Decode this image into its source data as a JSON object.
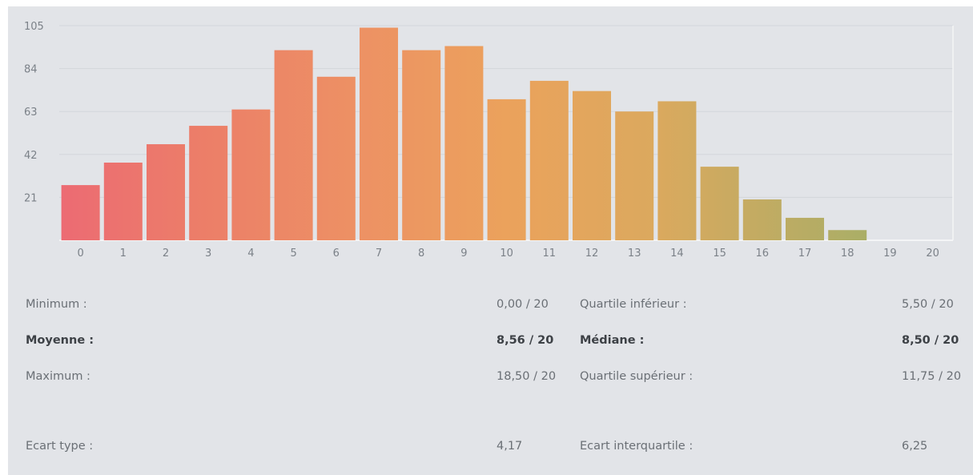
{
  "chart_data": {
    "type": "bar",
    "categories": [
      "0",
      "1",
      "2",
      "3",
      "4",
      "5",
      "6",
      "7",
      "8",
      "9",
      "10",
      "11",
      "12",
      "13",
      "14",
      "15",
      "16",
      "17",
      "18",
      "19",
      "20"
    ],
    "values": [
      27,
      38,
      47,
      56,
      64,
      93,
      80,
      104,
      93,
      95,
      69,
      78,
      73,
      63,
      68,
      36,
      20,
      11,
      5,
      0,
      0
    ],
    "y_ticks": [
      "21",
      "42",
      "63",
      "84",
      "105"
    ],
    "ylim": [
      0,
      105
    ],
    "grid": true,
    "colors": [
      "#ec6b73",
      "#ec7f68",
      "#ed9164",
      "#eba25c",
      "#dba95e",
      "#b8ac64",
      "#97b26a"
    ]
  },
  "stats": {
    "minimum_label": "Minimum :",
    "minimum_value": "0,00 / 20",
    "q1_label": "Quartile inférieur :",
    "q1_value": "5,50 / 20",
    "mean_label": "Moyenne :",
    "mean_value": "8,56 / 20",
    "median_label": "Médiane :",
    "median_value": "8,50 / 20",
    "maximum_label": "Maximum :",
    "maximum_value": "18,50 / 20",
    "q3_label": "Quartile supérieur :",
    "q3_value": "11,75 / 20",
    "std_label": "Ecart type :",
    "std_value": "4,17",
    "iqr_label": "Ecart interquartile :",
    "iqr_value": "6,25"
  }
}
